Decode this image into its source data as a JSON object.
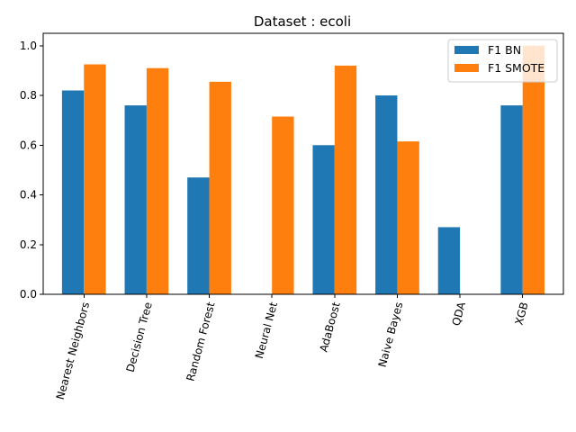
{
  "chart_data": {
    "type": "bar",
    "title": "Dataset : ecoli",
    "xlabel": "",
    "ylabel": "",
    "categories": [
      "Nearest Neighbors",
      "Decision Tree",
      "Random Forest",
      "Neural Net",
      "AdaBoost",
      "Naive Bayes",
      "QDA",
      "XGB"
    ],
    "series": [
      {
        "name": "F1 BN",
        "color": "#1f77b4",
        "values": [
          0.82,
          0.76,
          0.47,
          0.0,
          0.6,
          0.8,
          0.27,
          0.76
        ]
      },
      {
        "name": "F1 SMOTE",
        "color": "#ff7f0e",
        "values": [
          0.925,
          0.91,
          0.855,
          0.715,
          0.92,
          0.615,
          0.0,
          1.0
        ]
      }
    ],
    "ylim": [
      0,
      1.05
    ],
    "yticks": [
      "0.0",
      "0.2",
      "0.4",
      "0.6",
      "0.8",
      "1.0"
    ],
    "x_tick_rotation_deg": 75,
    "grid": false,
    "legend_position": "top-right"
  }
}
